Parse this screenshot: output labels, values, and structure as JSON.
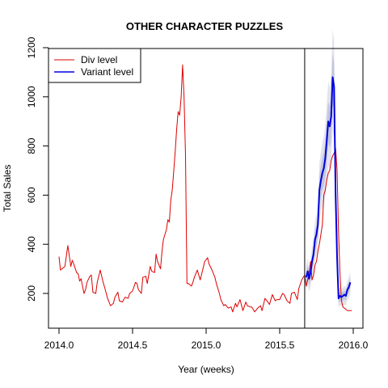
{
  "chart_data": {
    "type": "line",
    "title": "OTHER CHARACTER PUZZLES",
    "xlabel": "Year (weeks)",
    "ylabel": "Total Sales",
    "xlim": [
      2014.0,
      2016.0
    ],
    "ylim": [
      120,
      1200
    ],
    "x_ticks": [
      {
        "value": 2014.0,
        "label": "2014.0"
      },
      {
        "value": 2014.5,
        "label": "2014.5"
      },
      {
        "value": 2015.0,
        "label": "2015.0"
      },
      {
        "value": 2015.5,
        "label": "2015.5"
      },
      {
        "value": 2016.0,
        "label": "2016.0"
      }
    ],
    "y_ticks": [
      {
        "value": 200,
        "label": "200"
      },
      {
        "value": 400,
        "label": "400"
      },
      {
        "value": 600,
        "label": "600"
      },
      {
        "value": 800,
        "label": "800"
      },
      {
        "value": 1000,
        "label": "1000"
      },
      {
        "value": 1200,
        "label": "1200"
      }
    ],
    "grid": false,
    "legend_position": "top-left",
    "vline_x": 2015.67,
    "colors": {
      "div": "#dd0000",
      "variant": "#0000dd",
      "band_outer": "#e3e3ec",
      "band_inner": "#c2c5dc"
    },
    "series": [
      {
        "name": "Div level",
        "color": "#dd0000",
        "x": [
          2014.0,
          2014.01,
          2014.02,
          2014.04,
          2014.06,
          2014.08,
          2014.09,
          2014.1,
          2014.12,
          2014.13,
          2014.14,
          2014.15,
          2014.17,
          2014.18,
          2014.19,
          2014.21,
          2014.22,
          2014.23,
          2014.25,
          2014.26,
          2014.28,
          2014.3,
          2014.31,
          2014.33,
          2014.35,
          2014.37,
          2014.38,
          2014.4,
          2014.41,
          2014.43,
          2014.45,
          2014.47,
          2014.48,
          2014.5,
          2014.52,
          2014.53,
          2014.54,
          2014.56,
          2014.57,
          2014.59,
          2014.6,
          2014.62,
          2014.63,
          2014.65,
          2014.66,
          2014.67,
          2014.69,
          2014.7,
          2014.71,
          2014.73,
          2014.74,
          2014.75,
          2014.76,
          2014.77,
          2014.78,
          2014.79,
          2014.8,
          2014.81,
          2014.82,
          2014.83,
          2014.84,
          2014.85,
          2014.86,
          2014.87,
          2014.88,
          2014.89,
          2014.9,
          2014.91,
          2014.92,
          2014.94,
          2014.96,
          2014.98,
          2014.99,
          2015.01,
          2015.02,
          2015.04,
          2015.06,
          2015.07,
          2015.09,
          2015.1,
          2015.12,
          2015.13,
          2015.15,
          2015.17,
          2015.18,
          2015.2,
          2015.21,
          2015.23,
          2015.25,
          2015.27,
          2015.28,
          2015.3,
          2015.31,
          2015.33,
          2015.35,
          2015.37,
          2015.38,
          2015.4,
          2015.42,
          2015.43,
          2015.45,
          2015.47,
          2015.48,
          2015.5,
          2015.52,
          2015.53,
          2015.55,
          2015.57,
          2015.58,
          2015.6,
          2015.62,
          2015.63,
          2015.65,
          2015.67,
          2015.68,
          2015.69,
          2015.7,
          2015.71,
          2015.72,
          2015.73,
          2015.74,
          2015.75,
          2015.76,
          2015.77,
          2015.78,
          2015.79,
          2015.8,
          2015.81,
          2015.82,
          2015.83,
          2015.84,
          2015.85,
          2015.86,
          2015.87,
          2015.88,
          2015.89,
          2015.9,
          2015.91,
          2015.92,
          2015.93,
          2015.94,
          2015.95,
          2015.96,
          2015.97,
          2015.98,
          2015.99
        ],
        "y": [
          350,
          295,
          300,
          310,
          395,
          310,
          335,
          320,
          285,
          280,
          250,
          260,
          200,
          215,
          245,
          270,
          275,
          205,
          200,
          245,
          295,
          245,
          225,
          180,
          150,
          160,
          185,
          205,
          170,
          165,
          185,
          180,
          200,
          210,
          245,
          240,
          215,
          200,
          265,
          270,
          240,
          310,
          290,
          285,
          360,
          330,
          300,
          370,
          420,
          460,
          500,
          490,
          580,
          620,
          700,
          780,
          870,
          940,
          925,
          1000,
          1130,
          1000,
          760,
          240,
          240,
          235,
          230,
          245,
          265,
          295,
          255,
          305,
          330,
          345,
          320,
          295,
          265,
          240,
          200,
          175,
          150,
          155,
          140,
          145,
          125,
          160,
          145,
          175,
          130,
          165,
          150,
          145,
          145,
          125,
          140,
          150,
          130,
          180,
          165,
          155,
          195,
          170,
          175,
          175,
          200,
          195,
          170,
          160,
          200,
          205,
          175,
          220,
          255,
          275,
          230,
          255,
          285,
          330,
          255,
          275,
          315,
          330,
          370,
          400,
          440,
          480,
          600,
          620,
          660,
          690,
          700,
          740,
          760,
          770,
          790,
          700,
          450,
          280,
          170,
          145,
          140,
          135,
          130,
          130,
          130,
          130
        ]
      },
      {
        "name": "Variant level",
        "color": "#0000dd",
        "x": [
          2015.68,
          2015.69,
          2015.7,
          2015.71,
          2015.72,
          2015.73,
          2015.74,
          2015.75,
          2015.76,
          2015.77,
          2015.78,
          2015.79,
          2015.8,
          2015.81,
          2015.82,
          2015.83,
          2015.84,
          2015.85,
          2015.86,
          2015.87,
          2015.88,
          2015.89,
          2015.9,
          2015.91,
          2015.92,
          2015.93,
          2015.94,
          2015.95,
          2015.96,
          2015.97,
          2015.98
        ],
        "y": [
          265,
          290,
          260,
          285,
          330,
          360,
          420,
          440,
          480,
          620,
          660,
          690,
          710,
          750,
          820,
          900,
          880,
          920,
          1080,
          1040,
          600,
          350,
          180,
          190,
          185,
          190,
          195,
          190,
          215,
          225,
          245
        ]
      }
    ]
  }
}
